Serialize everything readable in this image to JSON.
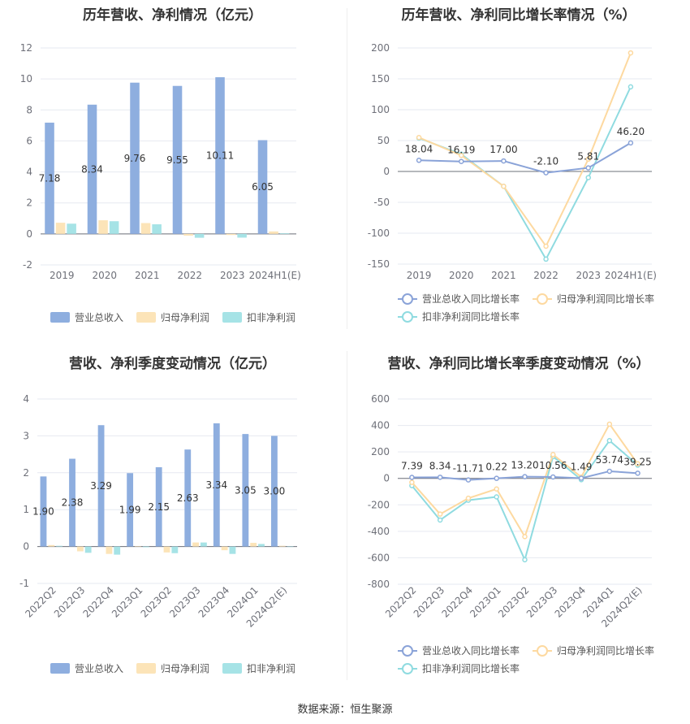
{
  "colors": {
    "revenue": "#8eaedf",
    "parent_profit": "#fce4b8",
    "deducted_profit": "#a6e3e6",
    "revenue_line": "#8aa3d8",
    "parent_line": "#fdd9a0",
    "deducted_line": "#8fdbe0"
  },
  "source_text": "数据来源：恒生聚源",
  "chart_data": [
    {
      "id": "annual-bar",
      "type": "bar",
      "title": "历年营收、净利情况（亿元）",
      "categories": [
        "2019",
        "2020",
        "2021",
        "2022",
        "2023",
        "2024H1(E)"
      ],
      "ylim": [
        -2,
        12
      ],
      "yticks": [
        "-2",
        "0",
        "2",
        "4",
        "6",
        "8",
        "10",
        "12"
      ],
      "grid": true,
      "legend_position": "bottom",
      "series": [
        {
          "name": "营业总收入",
          "values": [
            7.18,
            8.34,
            9.76,
            9.55,
            10.11,
            6.05
          ],
          "labels": [
            "7.18",
            "8.34",
            "9.76",
            "9.55",
            "10.11",
            "6.05"
          ]
        },
        {
          "name": "归母净利润",
          "values": [
            0.72,
            0.88,
            0.7,
            -0.11,
            -0.07,
            0.16
          ]
        },
        {
          "name": "扣非净利润",
          "values": [
            0.66,
            0.82,
            0.62,
            -0.25,
            -0.24,
            0.04
          ]
        }
      ]
    },
    {
      "id": "annual-growth",
      "type": "line",
      "title": "历年营收、净利同比增长率情况（%）",
      "categories": [
        "2019",
        "2020",
        "2021",
        "2022",
        "2023",
        "2024H1(E)"
      ],
      "ylim": [
        -150,
        200
      ],
      "yticks": [
        "-150",
        "-100",
        "-50",
        "0",
        "50",
        "100",
        "150",
        "200"
      ],
      "grid": true,
      "legend_position": "bottom",
      "series": [
        {
          "name": "营业总收入同比增长率",
          "values": [
            18.04,
            16.19,
            17.0,
            -2.1,
            5.81,
            46.2
          ],
          "labels": [
            "18.04",
            "16.19",
            "17.00",
            "-2.10",
            "5.81",
            "46.20"
          ]
        },
        {
          "name": "归母净利润同比增长率",
          "values": [
            55,
            26,
            -24,
            -121,
            20,
            192
          ]
        },
        {
          "name": "扣非净利润同比增长率",
          "values": [
            54,
            28,
            -24,
            -142,
            -10,
            137
          ]
        }
      ]
    },
    {
      "id": "quarter-bar",
      "type": "bar",
      "title": "营收、净利季度变动情况（亿元）",
      "categories": [
        "2022Q2",
        "2022Q3",
        "2022Q4",
        "2023Q1",
        "2023Q2",
        "2023Q3",
        "2023Q4",
        "2024Q1",
        "2024Q2(E)"
      ],
      "ylim": [
        -1,
        4
      ],
      "yticks": [
        "-1",
        "0",
        "1",
        "2",
        "3",
        "4"
      ],
      "grid": true,
      "legend_position": "bottom",
      "series": [
        {
          "name": "营业总收入",
          "values": [
            1.9,
            2.38,
            3.29,
            1.99,
            2.15,
            2.63,
            3.34,
            3.05,
            3.0
          ],
          "labels": [
            "1.90",
            "2.38",
            "3.29",
            "1.99",
            "2.15",
            "2.63",
            "3.34",
            "3.05",
            "3.00"
          ]
        },
        {
          "name": "归母净利润",
          "values": [
            0.04,
            -0.13,
            -0.2,
            0.01,
            -0.16,
            0.11,
            -0.1,
            0.1,
            0.02
          ]
        },
        {
          "name": "扣非净利润",
          "values": [
            0.02,
            -0.17,
            -0.22,
            -0.02,
            -0.18,
            0.11,
            -0.2,
            0.07,
            0.0
          ]
        }
      ]
    },
    {
      "id": "quarter-growth",
      "type": "line",
      "title": "营收、净利同比增长率季度变动情况（%）",
      "categories": [
        "2022Q2",
        "2022Q3",
        "2022Q4",
        "2023Q1",
        "2023Q2",
        "2023Q3",
        "2023Q4",
        "2024Q1",
        "2024Q2(E)"
      ],
      "ylim": [
        -800,
        600
      ],
      "yticks": [
        "-800",
        "-600",
        "-400",
        "-200",
        "0",
        "200",
        "400",
        "600"
      ],
      "grid": true,
      "legend_position": "bottom",
      "series": [
        {
          "name": "营业总收入同比增长率",
          "values": [
            7.39,
            8.34,
            -11.71,
            0.22,
            13.2,
            10.56,
            1.49,
            53.74,
            39.25
          ],
          "labels": [
            "7.39",
            "8.34",
            "-11.71",
            "0.22",
            "13.20",
            "10.56",
            "1.49",
            "53.74",
            "39.25"
          ]
        },
        {
          "name": "归母净利润同比增长率",
          "values": [
            -30,
            -270,
            -150,
            -80,
            -440,
            180,
            10,
            410,
            110
          ]
        },
        {
          "name": "扣非净利润同比增长率",
          "values": [
            -55,
            -315,
            -165,
            -140,
            -615,
            165,
            -10,
            285,
            100
          ]
        }
      ]
    }
  ]
}
